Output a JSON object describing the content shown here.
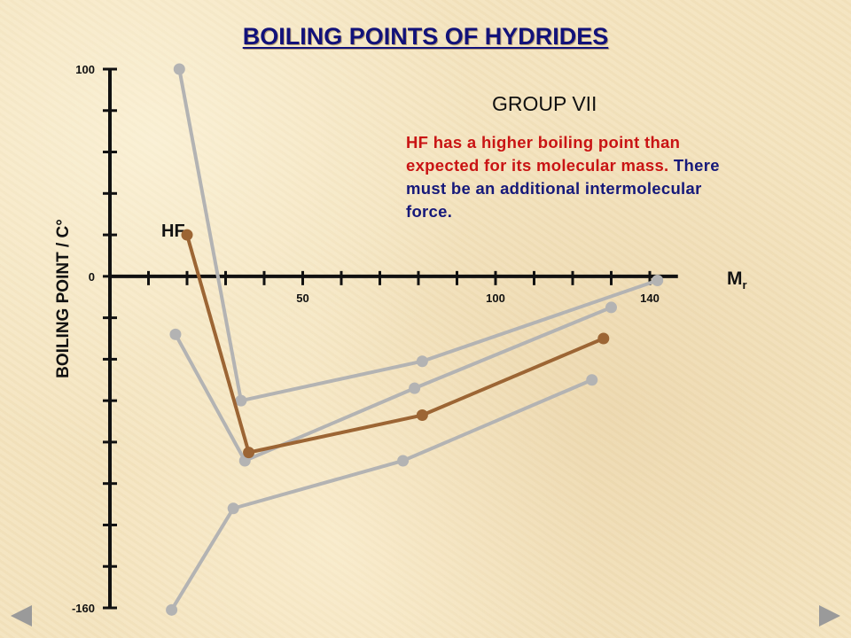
{
  "title": "BOILING POINTS OF HYDRIDES",
  "group_label": "GROUP VII",
  "annotation": {
    "red": "HF has a higher boiling point than expected for its molecular mass.",
    "blue": "There must be an additional intermolecular force."
  },
  "hf_label": "HF",
  "colors": {
    "title": "#12127a",
    "highlight_series": "#9c6534",
    "grey_series": "#b3b3b3",
    "annotation_red": "#c91414",
    "annotation_blue": "#16197a"
  },
  "nav": {
    "prev_icon": "triangle-left-icon",
    "next_icon": "triangle-right-icon"
  },
  "chart_data": {
    "type": "line",
    "xlabel_main": "M",
    "xlabel_sub": "r",
    "ylabel": "BOILING POINT / C°",
    "xlim": [
      0,
      145
    ],
    "ylim": [
      -160,
      100
    ],
    "y_ticks": [
      100,
      0,
      -160
    ],
    "x_ticks": [
      50,
      100,
      140
    ],
    "series": [
      {
        "highlight": false,
        "x": [
          18,
          34,
          81,
          142
        ],
        "y": [
          100,
          -60,
          -41,
          -2
        ]
      },
      {
        "highlight": true,
        "x": [
          20,
          36,
          81,
          128
        ],
        "y": [
          20,
          -85,
          -67,
          -30
        ]
      },
      {
        "highlight": false,
        "x": [
          17,
          35,
          79,
          130
        ],
        "y": [
          -28,
          -89,
          -54,
          -15
        ]
      },
      {
        "highlight": false,
        "x": [
          16,
          32,
          76,
          125
        ],
        "y": [
          -161,
          -112,
          -89,
          -50
        ]
      }
    ]
  }
}
